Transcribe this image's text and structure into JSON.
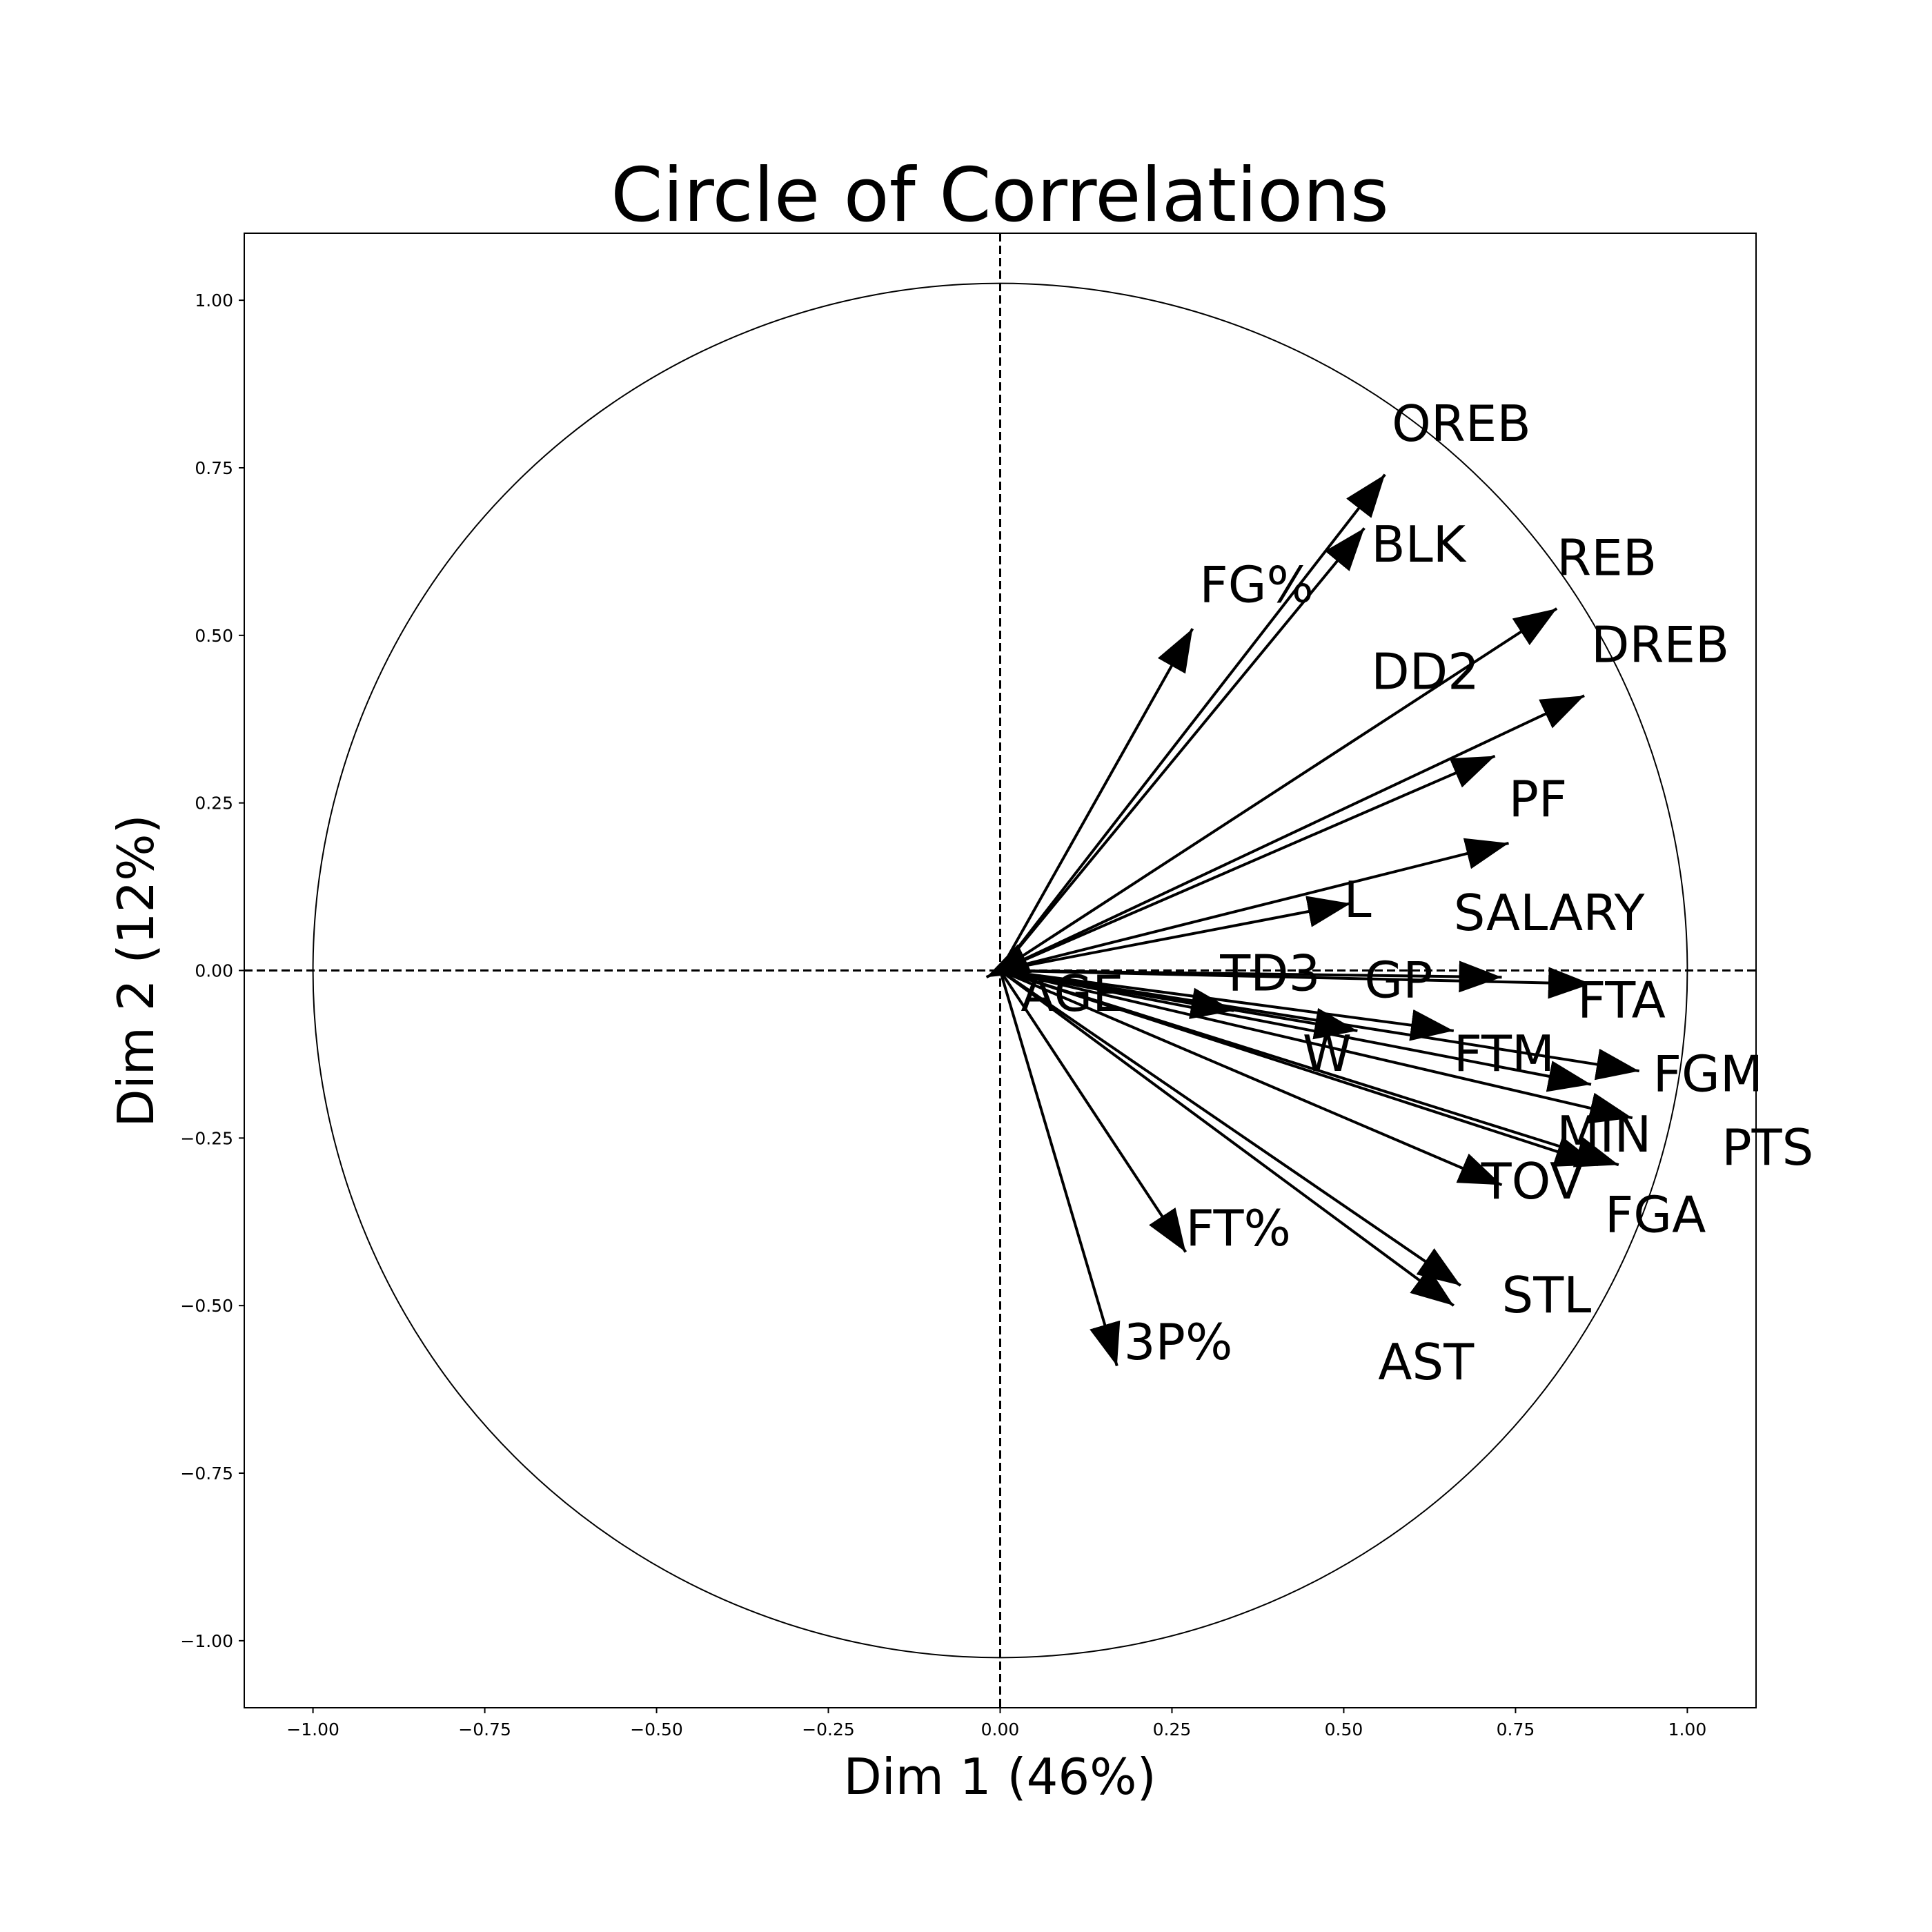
{
  "chart_data": {
    "type": "scatter",
    "subtype": "correlation-circle",
    "title": "Circle of Correlations",
    "xlabel": "Dim 1 (46%)",
    "ylabel": "Dim 2 (12%)",
    "xlim": [
      -1.1,
      1.1
    ],
    "ylim": [
      -1.1,
      1.1
    ],
    "xticks": [
      -1.0,
      -0.75,
      -0.5,
      -0.25,
      0.0,
      0.25,
      0.5,
      0.75,
      1.0
    ],
    "yticks": [
      -1.0,
      -0.75,
      -0.5,
      -0.25,
      0.0,
      0.25,
      0.5,
      0.75,
      1.0
    ],
    "xtick_labels": [
      "−1.00",
      "−0.75",
      "−0.50",
      "−0.25",
      "0.00",
      "0.25",
      "0.50",
      "0.75",
      "1.00"
    ],
    "ytick_labels": [
      "−1.00",
      "−0.75",
      "−0.50",
      "−0.25",
      "0.00",
      "0.25",
      "0.50",
      "0.75",
      "1.00"
    ],
    "unit_circle": true,
    "reference_lines": "dashed x=0 and y=0",
    "grid": false,
    "vectors": [
      {
        "name": "OREB",
        "x": 0.56,
        "y": 0.74,
        "label_x": 0.57,
        "label_y": 0.79
      },
      {
        "name": "BLK",
        "x": 0.53,
        "y": 0.66,
        "label_x": 0.54,
        "label_y": 0.61
      },
      {
        "name": "FG%",
        "x": 0.28,
        "y": 0.51,
        "label_x": 0.29,
        "label_y": 0.55
      },
      {
        "name": "REB",
        "x": 0.81,
        "y": 0.54,
        "label_x": 0.81,
        "label_y": 0.59
      },
      {
        "name": "DREB",
        "x": 0.85,
        "y": 0.41,
        "label_x": 0.86,
        "label_y": 0.46
      },
      {
        "name": "DD2",
        "x": 0.72,
        "y": 0.32,
        "label_x": 0.54,
        "label_y": 0.42
      },
      {
        "name": "PF",
        "x": 0.74,
        "y": 0.19,
        "label_x": 0.74,
        "label_y": 0.23
      },
      {
        "name": "L",
        "x": 0.51,
        "y": 0.1,
        "label_x": 0.5,
        "label_y": 0.08
      },
      {
        "name": "SALARY",
        "x": 0.73,
        "y": -0.01,
        "label_x": 0.66,
        "label_y": 0.06
      },
      {
        "name": "FTA",
        "x": 0.86,
        "y": -0.02,
        "label_x": 0.84,
        "label_y": -0.07
      },
      {
        "name": "GP",
        "x": 0.66,
        "y": -0.09,
        "label_x": 0.53,
        "label_y": -0.04
      },
      {
        "name": "TD3",
        "x": 0.34,
        "y": -0.06,
        "label_x": 0.32,
        "label_y": -0.03
      },
      {
        "name": "AGE",
        "x": -0.02,
        "y": -0.01,
        "label_x": 0.03,
        "label_y": -0.06
      },
      {
        "name": "W",
        "x": 0.52,
        "y": -0.09,
        "label_x": 0.44,
        "label_y": -0.15
      },
      {
        "name": "FTM",
        "x": 0.86,
        "y": -0.17,
        "label_x": 0.66,
        "label_y": -0.15
      },
      {
        "name": "FGM",
        "x": 0.93,
        "y": -0.15,
        "label_x": 0.95,
        "label_y": -0.18
      },
      {
        "name": "MIN",
        "x": 0.92,
        "y": -0.22,
        "label_x": 0.81,
        "label_y": -0.27
      },
      {
        "name": "PTS",
        "x": 0.9,
        "y": -0.29,
        "label_x": 1.05,
        "label_y": -0.29
      },
      {
        "name": "TOV",
        "x": 0.73,
        "y": -0.32,
        "label_x": 0.7,
        "label_y": -0.34
      },
      {
        "name": "FGA",
        "x": 0.87,
        "y": -0.29,
        "label_x": 0.88,
        "label_y": -0.39
      },
      {
        "name": "FT%",
        "x": 0.27,
        "y": -0.42,
        "label_x": 0.27,
        "label_y": -0.41
      },
      {
        "name": "STL",
        "x": 0.67,
        "y": -0.47,
        "label_x": 0.73,
        "label_y": -0.51
      },
      {
        "name": "AST",
        "x": 0.66,
        "y": -0.5,
        "label_x": 0.55,
        "label_y": -0.61
      },
      {
        "name": "3P%",
        "x": 0.17,
        "y": -0.59,
        "label_x": 0.18,
        "label_y": -0.58
      }
    ]
  }
}
